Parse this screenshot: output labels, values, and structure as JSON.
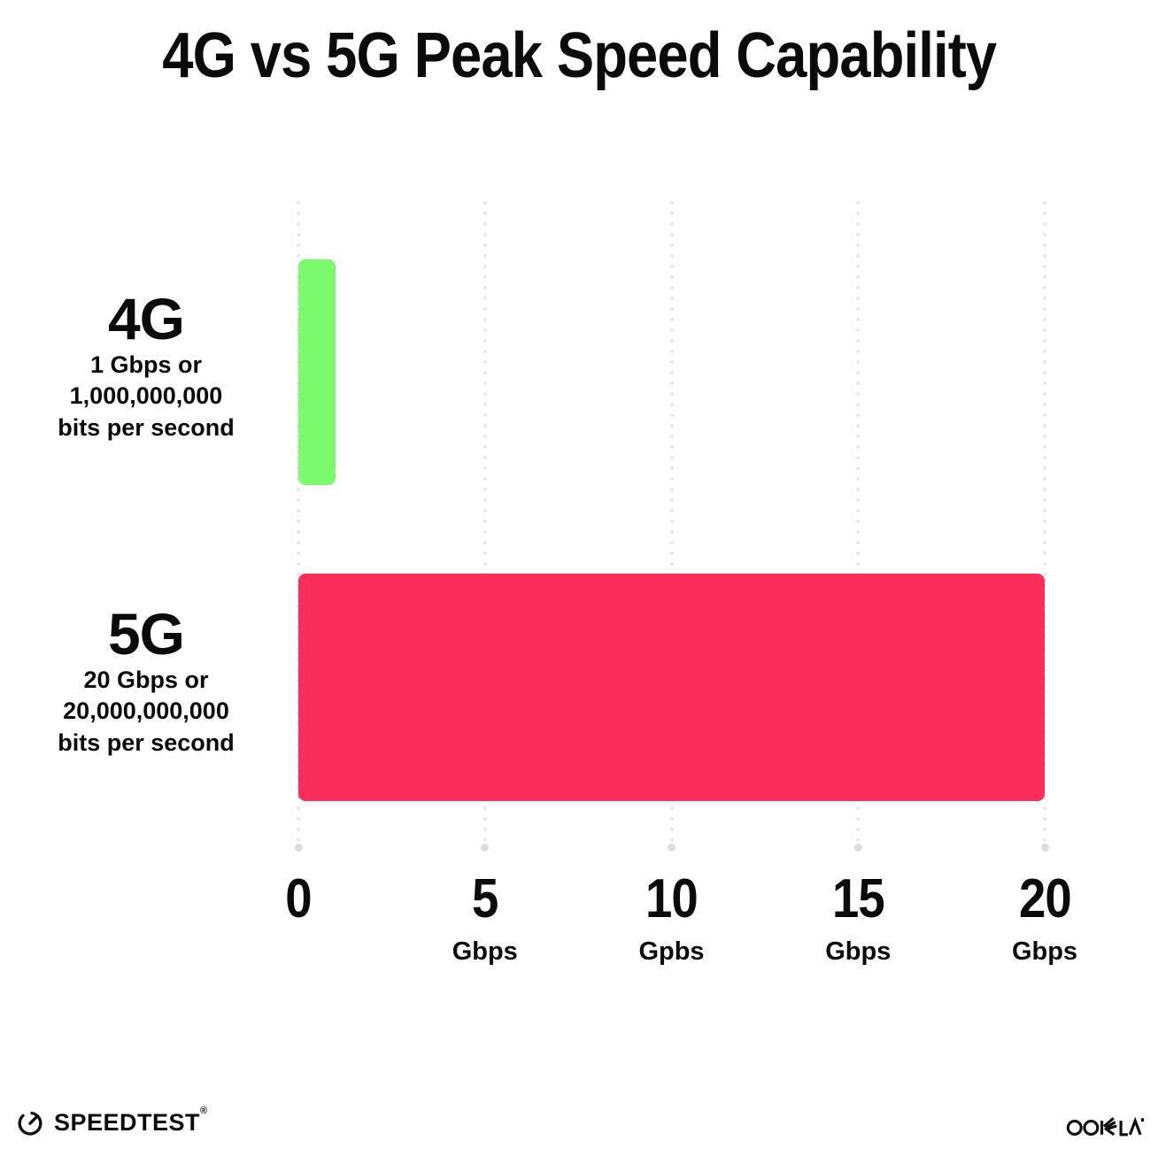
{
  "title": "4G vs 5G Peak Speed Capability",
  "chart_data": {
    "type": "bar",
    "orientation": "horizontal",
    "title": "4G vs 5G Peak Speed Capability",
    "categories": [
      "4G",
      "5G"
    ],
    "values": [
      1,
      20
    ],
    "bar_colors": [
      "#7cfa6d",
      "#fb2d5a"
    ],
    "category_sublabels": [
      [
        "1 Gbps or",
        "1,000,000,000",
        "bits per second"
      ],
      [
        "20 Gbps or",
        "20,000,000,000",
        "bits per second"
      ]
    ],
    "xlim": [
      0,
      20
    ],
    "x_ticks": [
      {
        "value": 0,
        "label": "0",
        "unit": ""
      },
      {
        "value": 5,
        "label": "5",
        "unit": "Gbps"
      },
      {
        "value": 10,
        "label": "10",
        "unit": "Gpbs"
      },
      {
        "value": 15,
        "label": "15",
        "unit": "Gbps"
      },
      {
        "value": 20,
        "label": "20",
        "unit": "Gbps"
      }
    ],
    "grid": "dotted-vertical-gridlines",
    "legend": "none",
    "gridline_color": "#e1e1ef"
  },
  "footer": {
    "speedtest_label": "SPEEDTEST",
    "speedtest_mark": "®",
    "ookla_label": "OOKLA",
    "ookla_mark": "™"
  }
}
